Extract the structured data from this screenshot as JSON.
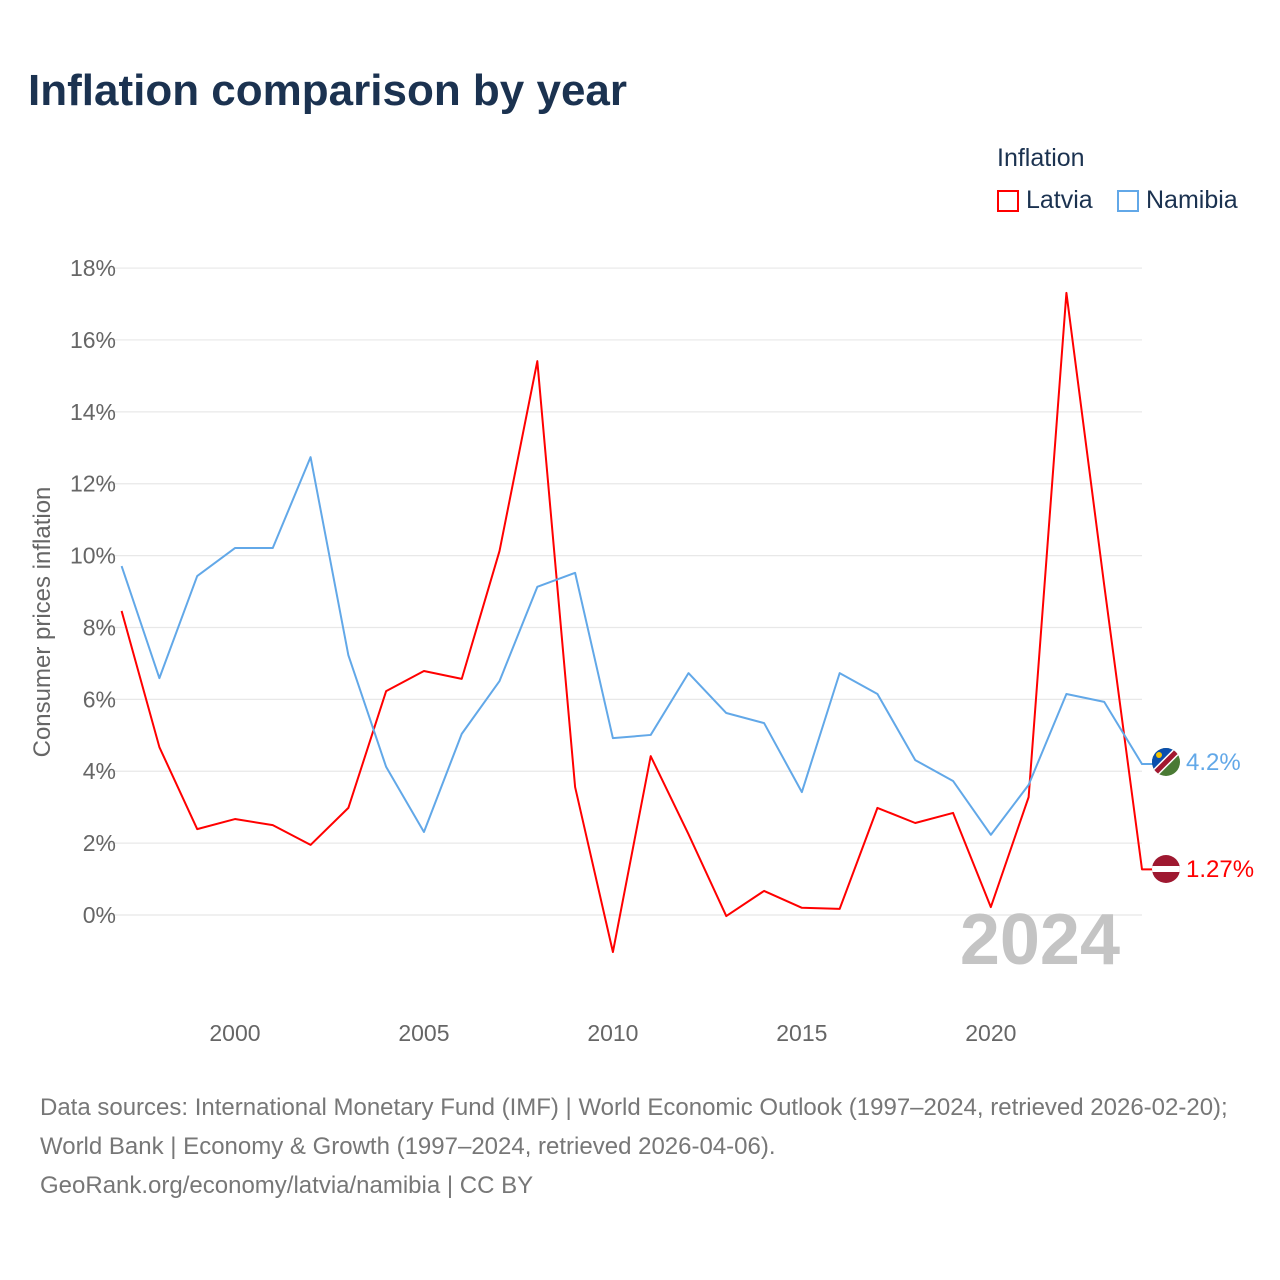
{
  "title": "Inflation comparison by year",
  "legend": {
    "title": "Inflation"
  },
  "source": {
    "line1": "Data sources: International Monetary Fund (IMF) | World Economic Outlook (1997–2024, retrieved 2026-02-20); World Bank | Economy & Growth (1997–2024, retrieved 2026-04-06).",
    "line2": "GeoRank.org/economy/latvia/namibia | CC BY"
  },
  "chart_data": {
    "type": "line",
    "title": "Inflation comparison by year",
    "xlabel": "",
    "ylabel": "Consumer prices inflation",
    "ylim": [
      -2,
      18
    ],
    "xlim": [
      1997,
      2024
    ],
    "yticks": [
      0,
      2,
      4,
      6,
      8,
      10,
      12,
      14,
      16,
      18
    ],
    "ytick_labels": [
      "0%",
      "2%",
      "4%",
      "6%",
      "8%",
      "10%",
      "12%",
      "14%",
      "16%",
      "18%"
    ],
    "xticks": [
      2000,
      2005,
      2010,
      2015,
      2020
    ],
    "xtick_labels": [
      "2000",
      "2005",
      "2010",
      "2015",
      "2020"
    ],
    "grid": true,
    "legend_position": "top-right",
    "year_watermark": "2024",
    "x": [
      1997,
      1998,
      1999,
      2000,
      2001,
      2002,
      2003,
      2004,
      2005,
      2006,
      2007,
      2008,
      2009,
      2010,
      2011,
      2012,
      2013,
      2014,
      2015,
      2016,
      2017,
      2018,
      2019,
      2020,
      2021,
      2022,
      2023,
      2024
    ],
    "series": [
      {
        "name": "Latvia",
        "color": "#ff0000",
        "end_label": "1.27%",
        "values": [
          8.46,
          4.67,
          2.39,
          2.67,
          2.5,
          1.95,
          2.98,
          6.23,
          6.79,
          6.57,
          10.13,
          15.41,
          3.56,
          -1.03,
          4.42,
          2.25,
          -0.03,
          0.67,
          0.2,
          0.17,
          2.98,
          2.56,
          2.84,
          0.22,
          3.28,
          17.31,
          9.18,
          1.27
        ]
      },
      {
        "name": "Namibia",
        "color": "#62a8e8",
        "end_label": "4.2%",
        "values": [
          9.71,
          6.59,
          9.43,
          10.21,
          10.21,
          12.74,
          7.23,
          4.12,
          2.31,
          5.04,
          6.51,
          9.13,
          9.52,
          4.92,
          5.01,
          6.73,
          5.62,
          5.34,
          3.42,
          6.73,
          6.15,
          4.31,
          3.73,
          2.23,
          3.62,
          6.15,
          5.93,
          4.2
        ]
      }
    ]
  }
}
